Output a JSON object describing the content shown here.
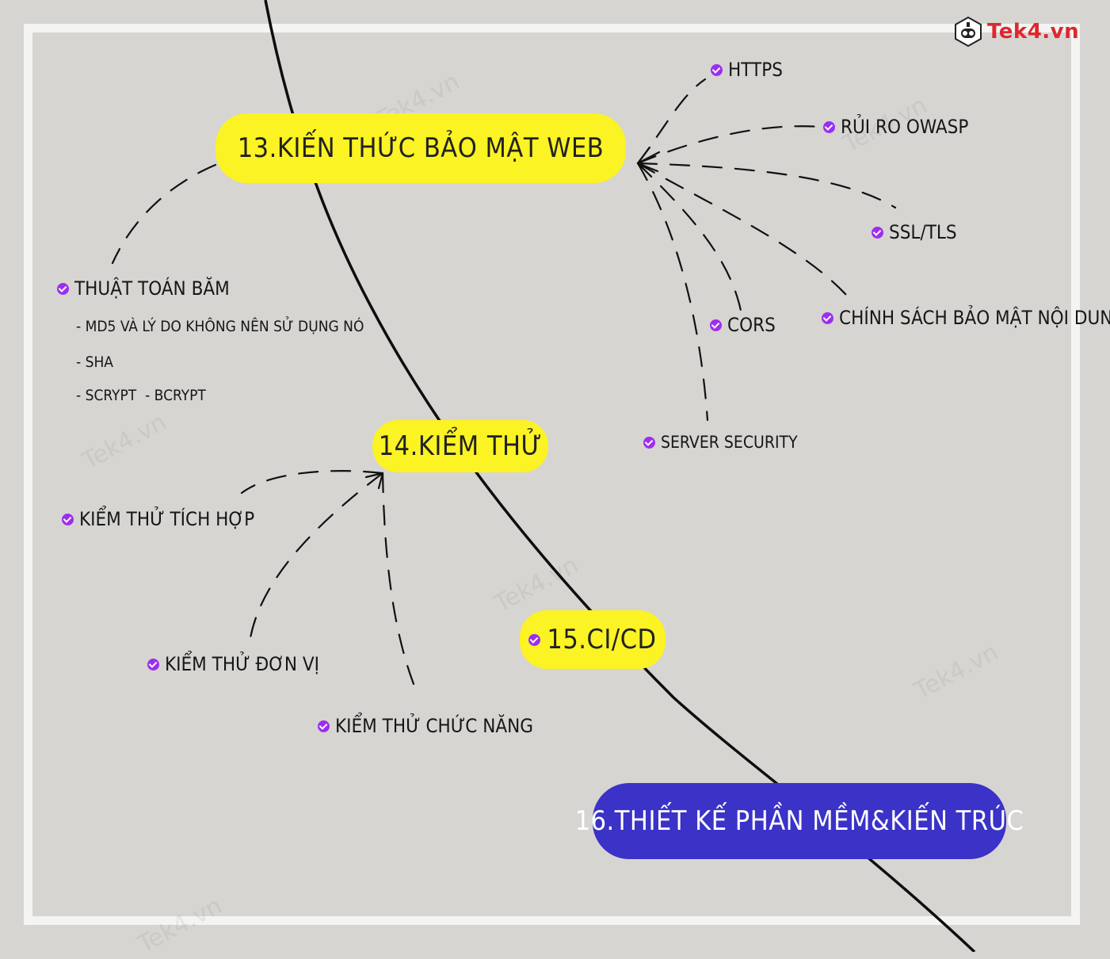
{
  "brand": {
    "logo_text": "Tek4.vn",
    "watermark": "Tek4.vn",
    "logo_icon": "robot-face-icon"
  },
  "colors": {
    "background": "#d6d5d2",
    "highlight_yellow": "#fbf323",
    "highlight_blue": "#3b32c7",
    "check_purple": "#9d2df0"
  },
  "sections": {
    "s13": {
      "title": "13.Kiến thức bảo mật web",
      "leaves": {
        "https": "HTTPS",
        "owasp": "Rủi ro OWASP",
        "ssl": "SSL/TLS",
        "csp": "Chính sách bảo mật nội dung",
        "cors": "CORS",
        "server": "Server security"
      },
      "hashing": {
        "title": "Thuật toán băm",
        "items": [
          "- MD5 và lý do không nên sử dụng nó",
          "- SHA",
          "- scrypt  - bcrypt"
        ]
      }
    },
    "s14": {
      "title": "14.Kiểm thử",
      "leaves": {
        "integration": "Kiểm thử tích hợp",
        "unit": "Kiểm thử đơn vị",
        "functional": "Kiểm thử chức năng"
      }
    },
    "s15": {
      "title": "15.CI/CD"
    },
    "s16": {
      "title": "16.Thiết kế phần mềm&kiến trúc"
    }
  }
}
